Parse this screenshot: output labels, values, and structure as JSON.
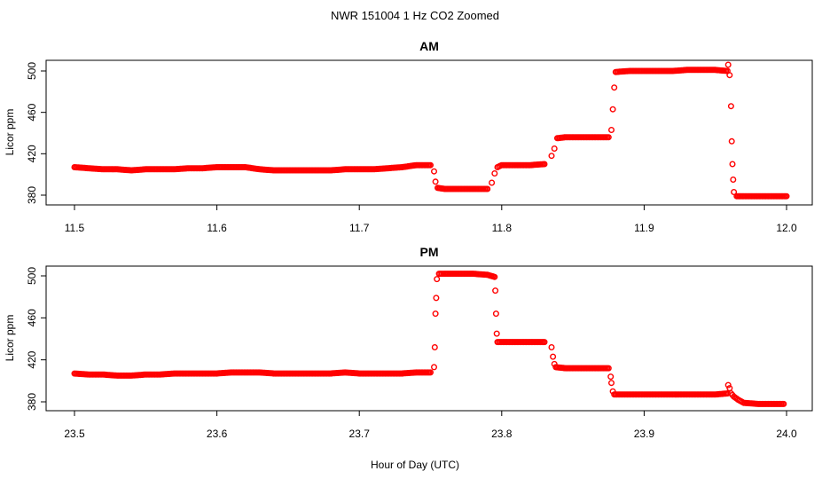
{
  "figure": {
    "title": "NWR  151004  1 Hz CO2 Zoomed",
    "xlabel": "Hour of Day (UTC)"
  },
  "colors": {
    "points": "#ff0000",
    "axis": "#000000",
    "background": "#ffffff"
  },
  "chart_data": [
    {
      "type": "scatter",
      "title": "AM",
      "ylabel": "Licor ppm",
      "xlim": [
        11.5,
        12.0
      ],
      "ylim": [
        370,
        512
      ],
      "xticks": [
        "11.5",
        "11.6",
        "11.7",
        "11.8",
        "11.9",
        "12.0"
      ],
      "yticks": [
        "380",
        "420",
        "460",
        "500"
      ],
      "xtick_values": [
        11.5,
        11.6,
        11.7,
        11.8,
        11.9,
        12.0
      ],
      "ytick_values": [
        380,
        420,
        460,
        500
      ],
      "grid": false,
      "series": [
        {
          "marker": "open-circle",
          "x": [
            11.5,
            11.51,
            11.52,
            11.53,
            11.54,
            11.55,
            11.56,
            11.57,
            11.58,
            11.59,
            11.6,
            11.61,
            11.62,
            11.63,
            11.64,
            11.65,
            11.66,
            11.67,
            11.68,
            11.69,
            11.7,
            11.71,
            11.72,
            11.73,
            11.74,
            11.75,
            11.7525,
            11.7535,
            11.755,
            11.76,
            11.77,
            11.78,
            11.79,
            11.793,
            11.795,
            11.797,
            11.8,
            11.81,
            11.82,
            11.83,
            11.835,
            11.837,
            11.839,
            11.845,
            11.855,
            11.865,
            11.875,
            11.877,
            11.878,
            11.879,
            11.88,
            11.89,
            11.9,
            11.91,
            11.92,
            11.93,
            11.94,
            11.95,
            11.9585,
            11.959,
            11.96,
            11.961,
            11.9615,
            11.962,
            11.9625,
            11.963,
            11.965,
            11.97,
            11.98,
            11.99,
            12.0
          ],
          "y": [
            407,
            406,
            405,
            405,
            404,
            405,
            405,
            405,
            406,
            406,
            407,
            407,
            407,
            405,
            404,
            404,
            404,
            404,
            404,
            405,
            405,
            405,
            406,
            407,
            409,
            409,
            403,
            393,
            387,
            386,
            386,
            386,
            386,
            392,
            401,
            407,
            409,
            409,
            409,
            410,
            418,
            425,
            435,
            436,
            436,
            436,
            436,
            443,
            463,
            484,
            499,
            500,
            500,
            500,
            500,
            501,
            501,
            501,
            500,
            506,
            496,
            466,
            432,
            410,
            395,
            383,
            379,
            379,
            379,
            379,
            379
          ]
        }
      ]
    },
    {
      "type": "scatter",
      "title": "PM",
      "ylabel": "Licor ppm",
      "xlim": [
        23.5,
        24.0
      ],
      "ylim": [
        370,
        512
      ],
      "xticks": [
        "23.5",
        "23.6",
        "23.7",
        "23.8",
        "23.9",
        "24.0"
      ],
      "yticks": [
        "380",
        "420",
        "460",
        "500"
      ],
      "xtick_values": [
        23.5,
        23.6,
        23.7,
        23.8,
        23.9,
        24.0
      ],
      "ytick_values": [
        380,
        420,
        460,
        500
      ],
      "grid": false,
      "series": [
        {
          "marker": "open-circle",
          "x": [
            23.5,
            23.51,
            23.52,
            23.53,
            23.54,
            23.55,
            23.56,
            23.57,
            23.58,
            23.59,
            23.6,
            23.61,
            23.62,
            23.63,
            23.64,
            23.65,
            23.66,
            23.67,
            23.68,
            23.69,
            23.7,
            23.71,
            23.72,
            23.73,
            23.74,
            23.75,
            23.7525,
            23.753,
            23.7535,
            23.754,
            23.7545,
            23.756,
            23.76,
            23.77,
            23.78,
            23.79,
            23.795,
            23.7955,
            23.796,
            23.7965,
            23.797,
            23.8,
            23.81,
            23.82,
            23.83,
            23.835,
            23.836,
            23.837,
            23.838,
            23.845,
            23.855,
            23.865,
            23.875,
            23.8765,
            23.877,
            23.878,
            23.879,
            23.88,
            23.89,
            23.9,
            23.91,
            23.92,
            23.93,
            23.94,
            23.95,
            23.9585,
            23.959,
            23.96,
            23.961,
            23.963,
            23.966,
            23.97,
            23.98,
            23.99,
            23.998
          ],
          "y": [
            407,
            406,
            406,
            405,
            405,
            406,
            406,
            407,
            407,
            407,
            407,
            408,
            408,
            408,
            407,
            407,
            407,
            407,
            407,
            408,
            407,
            407,
            407,
            407,
            408,
            408,
            413,
            432,
            464,
            479,
            497,
            502,
            502,
            502,
            502,
            501,
            499,
            486,
            464,
            445,
            437,
            437,
            437,
            437,
            437,
            432,
            423,
            416,
            413,
            412,
            412,
            412,
            412,
            404,
            398,
            390,
            387,
            387,
            387,
            387,
            387,
            387,
            387,
            387,
            387,
            388,
            396,
            393,
            388,
            385,
            382,
            379,
            378,
            378,
            378
          ]
        }
      ]
    }
  ]
}
